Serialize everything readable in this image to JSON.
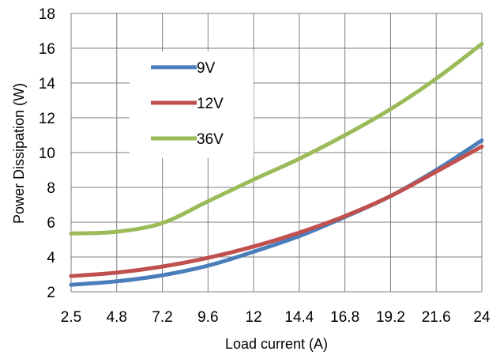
{
  "chart_data": {
    "type": "line",
    "title": "",
    "xlabel": "Load current (A)",
    "ylabel": "Power Dissipation (W)",
    "categories": [
      "2.5",
      "4.8",
      "7.2",
      "9.6",
      "12",
      "14.4",
      "16.8",
      "19.2",
      "21.6",
      "24"
    ],
    "ylim": [
      2,
      18
    ],
    "yticks": [
      "2",
      "4",
      "6",
      "8",
      "10",
      "12",
      "14",
      "16",
      "18"
    ],
    "grid": true,
    "legend_position": "top-left",
    "series": [
      {
        "name": "9V",
        "color": "#4a7ebb",
        "values": [
          2.4,
          2.6,
          2.95,
          3.5,
          4.3,
          5.2,
          6.3,
          7.5,
          9.0,
          10.7
        ]
      },
      {
        "name": "12V",
        "color": "#c0504d",
        "values": [
          2.9,
          3.1,
          3.45,
          3.95,
          4.6,
          5.4,
          6.35,
          7.5,
          8.9,
          10.35
        ]
      },
      {
        "name": "36V",
        "color": "#9bbb59",
        "values": [
          5.35,
          5.45,
          5.95,
          7.2,
          8.45,
          9.65,
          11.0,
          12.5,
          14.25,
          16.25
        ]
      }
    ]
  }
}
